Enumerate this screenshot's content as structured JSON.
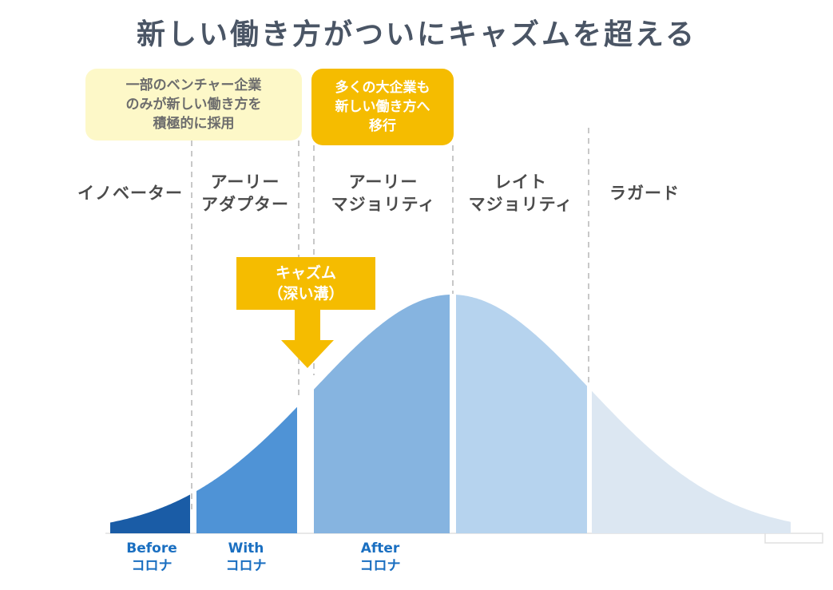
{
  "title": "新しい働き方がついにキャズムを超える",
  "callouts": {
    "minority": [
      "一部のベンチャー企業",
      "のみが新しい働き方を",
      "積極的に採用"
    ],
    "majority": [
      "多くの大企業も",
      "新しい働き方へ",
      "移行"
    ]
  },
  "segments": [
    {
      "lines": [
        "イノベーター"
      ],
      "color": "#1a5ca6"
    },
    {
      "lines": [
        "アーリー",
        "アダプター"
      ],
      "color": "#4f93d6"
    },
    {
      "lines": [
        "アーリー",
        "マジョリティ"
      ],
      "color": "#86b4e0"
    },
    {
      "lines": [
        "レイト",
        "マジョリティ"
      ],
      "color": "#b6d3ee"
    },
    {
      "lines": [
        "ラガード"
      ],
      "color": "#dce7f2"
    }
  ],
  "chasm": [
    "キャズム",
    "（深い溝）"
  ],
  "eras": [
    [
      "Before",
      "コロナ"
    ],
    [
      "With",
      "コロナ"
    ],
    [
      "After",
      "コロナ"
    ]
  ],
  "colors": {
    "accent_yellow": "#f5bc00",
    "pale_yellow": "#fdf8c8",
    "era_text": "#1a6fc1",
    "divider": "#c8c8c8"
  }
}
